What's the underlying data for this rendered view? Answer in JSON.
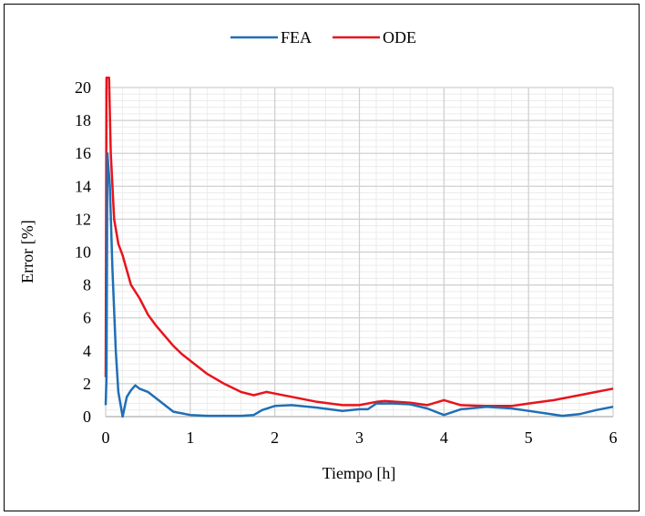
{
  "chart_data": {
    "type": "line",
    "title": "",
    "xlabel": "Tiempo [h]",
    "ylabel": "Error [%]",
    "xlim": [
      0,
      6
    ],
    "ylim": [
      0,
      20
    ],
    "xticks": [
      "0",
      "1",
      "2",
      "3",
      "4",
      "5",
      "6"
    ],
    "yticks": [
      "0",
      "2",
      "4",
      "6",
      "8",
      "10",
      "12",
      "14",
      "16",
      "18",
      "20"
    ],
    "grid": true,
    "legend_position": "top-center",
    "series": [
      {
        "name": "FEA",
        "color": "#1f6fb5",
        "x": [
          0,
          0.01,
          0.02,
          0.05,
          0.08,
          0.12,
          0.15,
          0.2,
          0.25,
          0.3,
          0.35,
          0.4,
          0.5,
          0.6,
          0.7,
          0.8,
          0.9,
          1.0,
          1.2,
          1.4,
          1.6,
          1.75,
          1.85,
          2.0,
          2.2,
          2.5,
          2.8,
          3.0,
          3.1,
          3.2,
          3.4,
          3.6,
          3.8,
          4.0,
          4.2,
          4.5,
          4.8,
          5.0,
          5.2,
          5.4,
          5.6,
          5.8,
          6.0
        ],
        "y": [
          0.7,
          2.4,
          16,
          14,
          9,
          4,
          1.5,
          0,
          1.2,
          1.6,
          1.9,
          1.7,
          1.5,
          1.1,
          0.7,
          0.3,
          0.2,
          0.1,
          0.05,
          0.05,
          0.05,
          0.1,
          0.4,
          0.65,
          0.7,
          0.55,
          0.35,
          0.45,
          0.45,
          0.8,
          0.8,
          0.75,
          0.5,
          0.1,
          0.45,
          0.6,
          0.5,
          0.35,
          0.2,
          0.05,
          0.15,
          0.4,
          0.6
        ]
      },
      {
        "name": "ODE",
        "color": "#e8141b",
        "x": [
          0,
          0.01,
          0.04,
          0.06,
          0.1,
          0.15,
          0.2,
          0.3,
          0.4,
          0.5,
          0.6,
          0.7,
          0.8,
          0.9,
          1.0,
          1.2,
          1.4,
          1.6,
          1.75,
          1.9,
          2.0,
          2.2,
          2.5,
          2.8,
          3.0,
          3.2,
          3.3,
          3.6,
          3.8,
          4.0,
          4.2,
          4.5,
          4.8,
          5.0,
          5.3,
          5.6,
          5.8,
          6.0
        ],
        "y": [
          2.4,
          20.6,
          20.6,
          16,
          12,
          10.5,
          9.8,
          8,
          7.2,
          6.2,
          5.5,
          4.9,
          4.3,
          3.8,
          3.4,
          2.6,
          2.0,
          1.5,
          1.3,
          1.5,
          1.4,
          1.2,
          0.9,
          0.7,
          0.7,
          0.9,
          0.95,
          0.85,
          0.7,
          1.0,
          0.7,
          0.65,
          0.65,
          0.8,
          1.0,
          1.3,
          1.5,
          1.7
        ]
      }
    ]
  }
}
